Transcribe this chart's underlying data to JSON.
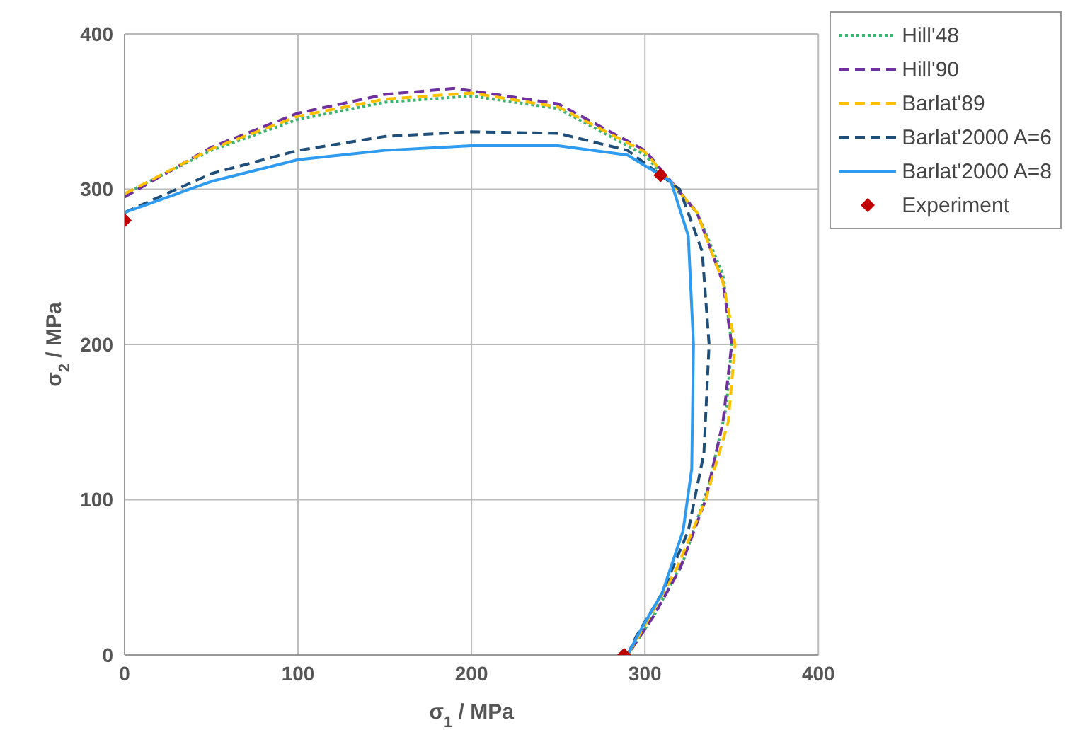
{
  "chart_data": {
    "type": "line",
    "xlabel": "σ$_{1}$ / MPa",
    "ylabel": "σ$_{2}$ / MPa",
    "xlim": [
      0,
      400
    ],
    "ylim": [
      0,
      400
    ],
    "xticks": [
      0,
      100,
      200,
      300,
      400
    ],
    "yticks": [
      0,
      100,
      200,
      300,
      400
    ],
    "grid": true,
    "legend": "right",
    "marker": "none",
    "series": [
      {
        "name": "Hill'48",
        "color": "#3cb371",
        "line_style": "dotted",
        "x": [
          0,
          50,
          100,
          150,
          200,
          250,
          300,
          330,
          345,
          350,
          347,
          337,
          322,
          305,
          290
        ],
        "values": [
          297,
          325,
          345,
          356,
          360,
          352,
          322,
          285,
          245,
          200,
          160,
          110,
          60,
          25,
          0
        ]
      },
      {
        "name": "Hill'90",
        "color": "#7030a0",
        "line_style": "dashed",
        "x": [
          0,
          50,
          100,
          150,
          190,
          250,
          300,
          330,
          345,
          350,
          345,
          335,
          320,
          305,
          290
        ],
        "values": [
          295,
          327,
          349,
          361,
          365,
          355,
          325,
          285,
          240,
          200,
          150,
          100,
          55,
          25,
          0
        ]
      },
      {
        "name": "Barlat'89",
        "color": "#ffc000",
        "line_style": "dashed",
        "x": [
          0,
          50,
          100,
          150,
          200,
          250,
          300,
          330,
          345,
          352,
          348,
          335,
          318,
          303,
          290
        ],
        "values": [
          297,
          326,
          347,
          358,
          362,
          353,
          324,
          285,
          240,
          200,
          150,
          100,
          55,
          25,
          0
        ]
      },
      {
        "name": "Barlat'2000 A=6",
        "color": "#1f4e79",
        "line_style": "dashed",
        "x": [
          0,
          50,
          100,
          150,
          200,
          250,
          290,
          320,
          333,
          337,
          334,
          325,
          310,
          295,
          290
        ],
        "values": [
          285,
          310,
          325,
          334,
          337,
          336,
          325,
          300,
          260,
          200,
          130,
          80,
          40,
          12,
          0
        ]
      },
      {
        "name": "Barlat'2000 A=8",
        "color": "#2e9bf0",
        "line_style": "solid",
        "x": [
          0,
          50,
          100,
          150,
          200,
          250,
          290,
          315,
          325,
          328,
          327,
          322,
          310,
          297,
          290
        ],
        "values": [
          285,
          305,
          319,
          325,
          328,
          328,
          322,
          305,
          270,
          200,
          120,
          80,
          40,
          15,
          0
        ]
      },
      {
        "name": "Experiment",
        "type": "scatter",
        "marker": "diamond",
        "color": "#c00000",
        "x": [
          0,
          309,
          288
        ],
        "values": [
          280,
          309,
          0
        ]
      }
    ]
  }
}
